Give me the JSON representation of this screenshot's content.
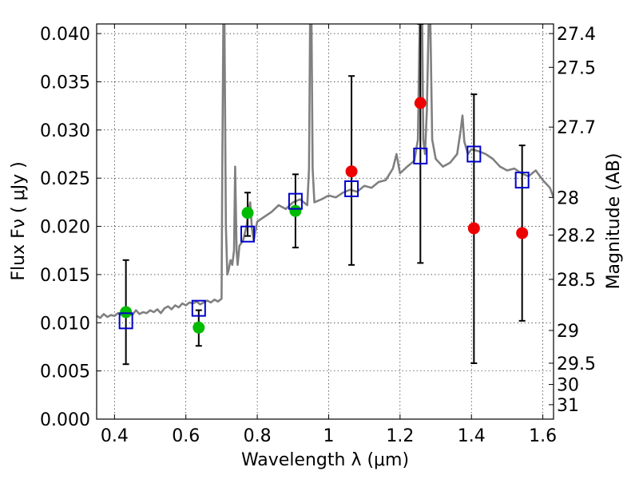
{
  "chart_data": {
    "type": "scatter",
    "xlabel": "Wavelength  λ (μm)",
    "ylabel": "Flux  Fν  ( μJy )",
    "y2label": "Magnitude (AB)",
    "xlim": [
      0.35,
      1.63
    ],
    "ylim": [
      0.0,
      0.041
    ],
    "grid": true,
    "x_ticks": [
      0.4,
      0.6,
      0.8,
      1.0,
      1.2,
      1.4,
      1.6
    ],
    "x_tick_labels": [
      "0.4",
      "0.6",
      "0.8",
      "1",
      "1.2",
      "1.4",
      "1.6"
    ],
    "y_ticks": [
      0.0,
      0.005,
      0.01,
      0.015,
      0.02,
      0.025,
      0.03,
      0.035,
      0.04
    ],
    "y_tick_labels": [
      "0.000",
      "0.005",
      "0.010",
      "0.015",
      "0.020",
      "0.025",
      "0.030",
      "0.035",
      "0.040"
    ],
    "mag_ticks": [
      {
        "label": "27.4",
        "flux": 0.04
      },
      {
        "label": "27.5",
        "flux": 0.0365
      },
      {
        "label": "27.7",
        "flux": 0.0303
      },
      {
        "label": "28",
        "flux": 0.023
      },
      {
        "label": "28.2",
        "flux": 0.0191
      },
      {
        "label": "28.5",
        "flux": 0.0145
      },
      {
        "label": "29",
        "flux": 0.0092
      },
      {
        "label": "29.5",
        "flux": 0.0058
      },
      {
        "label": "30",
        "flux": 0.0036
      },
      {
        "label": "31",
        "flux": 0.0015
      }
    ],
    "series": [
      {
        "name": "model spectrum",
        "kind": "line",
        "color": "#808080",
        "points": [
          [
            0.35,
            0.0107
          ],
          [
            0.36,
            0.0105
          ],
          [
            0.37,
            0.0109
          ],
          [
            0.38,
            0.0106
          ],
          [
            0.39,
            0.0108
          ],
          [
            0.4,
            0.0107
          ],
          [
            0.41,
            0.011
          ],
          [
            0.42,
            0.0108
          ],
          [
            0.43,
            0.0109
          ],
          [
            0.44,
            0.0111
          ],
          [
            0.45,
            0.0108
          ],
          [
            0.46,
            0.0113
          ],
          [
            0.47,
            0.0109
          ],
          [
            0.48,
            0.0111
          ],
          [
            0.49,
            0.011
          ],
          [
            0.5,
            0.0113
          ],
          [
            0.51,
            0.0111
          ],
          [
            0.52,
            0.0114
          ],
          [
            0.53,
            0.011
          ],
          [
            0.54,
            0.0115
          ],
          [
            0.55,
            0.0117
          ],
          [
            0.56,
            0.0114
          ],
          [
            0.57,
            0.0118
          ],
          [
            0.58,
            0.0116
          ],
          [
            0.59,
            0.012
          ],
          [
            0.6,
            0.0118
          ],
          [
            0.61,
            0.0121
          ],
          [
            0.62,
            0.012
          ],
          [
            0.63,
            0.0122
          ],
          [
            0.64,
            0.0119
          ],
          [
            0.65,
            0.0121
          ],
          [
            0.66,
            0.0123
          ],
          [
            0.67,
            0.0121
          ],
          [
            0.68,
            0.0124
          ],
          [
            0.69,
            0.0122
          ],
          [
            0.7,
            0.0125
          ],
          [
            0.702,
            0.026
          ],
          [
            0.705,
            0.041
          ],
          [
            0.708,
            0.041
          ],
          [
            0.712,
            0.02
          ],
          [
            0.716,
            0.015
          ],
          [
            0.72,
            0.0155
          ],
          [
            0.725,
            0.0165
          ],
          [
            0.73,
            0.016
          ],
          [
            0.735,
            0.0175
          ],
          [
            0.738,
            0.0262
          ],
          [
            0.742,
            0.0175
          ],
          [
            0.745,
            0.016
          ],
          [
            0.75,
            0.018
          ],
          [
            0.76,
            0.0185
          ],
          [
            0.77,
            0.02
          ],
          [
            0.775,
            0.0215
          ],
          [
            0.78,
            0.0225
          ],
          [
            0.785,
            0.0198
          ],
          [
            0.79,
            0.0185
          ],
          [
            0.8,
            0.0205
          ],
          [
            0.82,
            0.021
          ],
          [
            0.84,
            0.0215
          ],
          [
            0.86,
            0.0222
          ],
          [
            0.88,
            0.0218
          ],
          [
            0.9,
            0.0225
          ],
          [
            0.92,
            0.0228
          ],
          [
            0.94,
            0.0222
          ],
          [
            0.945,
            0.026
          ],
          [
            0.948,
            0.041
          ],
          [
            0.952,
            0.041
          ],
          [
            0.955,
            0.026
          ],
          [
            0.96,
            0.0225
          ],
          [
            0.98,
            0.0228
          ],
          [
            1.0,
            0.0232
          ],
          [
            1.02,
            0.023
          ],
          [
            1.04,
            0.0235
          ],
          [
            1.06,
            0.0238
          ],
          [
            1.08,
            0.0236
          ],
          [
            1.1,
            0.0242
          ],
          [
            1.12,
            0.024
          ],
          [
            1.14,
            0.0246
          ],
          [
            1.16,
            0.0248
          ],
          [
            1.18,
            0.026
          ],
          [
            1.19,
            0.0275
          ],
          [
            1.2,
            0.0255
          ],
          [
            1.22,
            0.0262
          ],
          [
            1.24,
            0.0268
          ],
          [
            1.25,
            0.029
          ],
          [
            1.255,
            0.041
          ],
          [
            1.262,
            0.041
          ],
          [
            1.265,
            0.029
          ],
          [
            1.27,
            0.0275
          ],
          [
            1.275,
            0.032
          ],
          [
            1.28,
            0.041
          ],
          [
            1.285,
            0.041
          ],
          [
            1.29,
            0.029
          ],
          [
            1.3,
            0.027
          ],
          [
            1.32,
            0.0262
          ],
          [
            1.34,
            0.0266
          ],
          [
            1.36,
            0.0275
          ],
          [
            1.37,
            0.03
          ],
          [
            1.375,
            0.0315
          ],
          [
            1.38,
            0.0288
          ],
          [
            1.39,
            0.0275
          ],
          [
            1.4,
            0.028
          ],
          [
            1.42,
            0.0278
          ],
          [
            1.44,
            0.0275
          ],
          [
            1.46,
            0.027
          ],
          [
            1.48,
            0.0262
          ],
          [
            1.5,
            0.0258
          ],
          [
            1.52,
            0.026
          ],
          [
            1.54,
            0.0255
          ],
          [
            1.56,
            0.0252
          ],
          [
            1.58,
            0.0258
          ],
          [
            1.6,
            0.0248
          ],
          [
            1.62,
            0.024
          ],
          [
            1.63,
            0.023
          ]
        ]
      },
      {
        "name": "green points",
        "kind": "scatter",
        "color": "#00bb00",
        "points": [
          {
            "x": 0.432,
            "y": 0.0111,
            "yerr_low": 0.0057,
            "yerr_high": 0.0165
          },
          {
            "x": 0.636,
            "y": 0.0095,
            "yerr_low": 0.0076,
            "yerr_high": 0.0113
          },
          {
            "x": 0.773,
            "y": 0.0214,
            "yerr_low": 0.019,
            "yerr_high": 0.0235
          },
          {
            "x": 0.907,
            "y": 0.0216,
            "yerr_low": 0.0178,
            "yerr_high": 0.0254
          }
        ]
      },
      {
        "name": "red points",
        "kind": "scatter",
        "color": "#ee0000",
        "points": [
          {
            "x": 1.064,
            "y": 0.0257,
            "yerr_low": 0.016,
            "yerr_high": 0.0356
          },
          {
            "x": 1.257,
            "y": 0.0328,
            "yerr_low": 0.0162,
            "yerr_high": 0.041
          },
          {
            "x": 1.407,
            "y": 0.0198,
            "yerr_low": 0.0058,
            "yerr_high": 0.0337
          },
          {
            "x": 1.542,
            "y": 0.0193,
            "yerr_low": 0.0102,
            "yerr_high": 0.0284
          }
        ]
      },
      {
        "name": "model band fluxes",
        "kind": "scatter",
        "marker": "open-square",
        "color": "#0000cc",
        "points": [
          {
            "x": 0.432,
            "y": 0.0102
          },
          {
            "x": 0.636,
            "y": 0.0115
          },
          {
            "x": 0.773,
            "y": 0.0192
          },
          {
            "x": 0.907,
            "y": 0.0226
          },
          {
            "x": 1.064,
            "y": 0.0239
          },
          {
            "x": 1.257,
            "y": 0.0273
          },
          {
            "x": 1.407,
            "y": 0.0275
          },
          {
            "x": 1.542,
            "y": 0.0248
          }
        ]
      }
    ]
  }
}
